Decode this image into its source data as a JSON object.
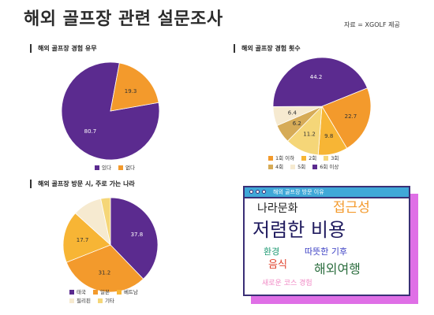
{
  "header": {
    "title": "해외 골프장 관련 설문조사",
    "source": "자료 = XGOLF 제공"
  },
  "colors": {
    "purple": "#5b2b8f",
    "orange": "#f39a2c",
    "yellow_orange": "#f7b535",
    "light_yellow": "#f5d678",
    "tan": "#d6ab57",
    "cream": "#f6ead0",
    "pink_shadow": "#df6fe6",
    "title_bar": "#3fa8d8"
  },
  "chart_data": [
    {
      "type": "pie",
      "title": "해외 골프장 경험 유무",
      "categories": [
        "있다",
        "없다"
      ],
      "values": [
        80.7,
        19.3
      ],
      "value_labels": [
        "80.7",
        "19.3"
      ],
      "colors": [
        "#5b2b8f",
        "#f39a2c"
      ],
      "legend": "bottom"
    },
    {
      "type": "pie",
      "title": "해외 골프장 경험 횟수",
      "categories": [
        "1회 이하",
        "2회",
        "3회",
        "4회",
        "5회",
        "6회 이상"
      ],
      "values": [
        22.7,
        9.8,
        11.2,
        6.2,
        6.4,
        44.2
      ],
      "value_labels": [
        "22.7",
        "9.8",
        "11.2",
        "6.2",
        "6.4",
        "44.2"
      ],
      "colors": [
        "#f39a2c",
        "#f7b535",
        "#f5d678",
        "#d6ab57",
        "#f6ead0",
        "#5b2b8f"
      ],
      "legend": "bottom"
    },
    {
      "type": "pie",
      "title": "해외 골프장 방문 시, 주로 가는 나라",
      "categories": [
        "태국",
        "일본",
        "베트남",
        "필리핀",
        "기타"
      ],
      "values": [
        37.8,
        31.2,
        17.7,
        10.0,
        3.3
      ],
      "value_labels": [
        "37.8",
        "31.2",
        "17.7",
        "",
        ""
      ],
      "colors": [
        "#5b2b8f",
        "#f39a2c",
        "#f7b535",
        "#f6ead0",
        "#f5d678"
      ],
      "legend": "bottom"
    }
  ],
  "word_cloud": {
    "title": "해외 골프장 방문 이유",
    "words": [
      {
        "text": "나라문화",
        "color": "#222222"
      },
      {
        "text": "접근성",
        "color": "#f39a2c"
      },
      {
        "text": "저렴한 비용",
        "color": "#1f1a5e"
      },
      {
        "text": "환경",
        "color": "#1e9a73"
      },
      {
        "text": "따뜻한 기후",
        "color": "#3b3fc4"
      },
      {
        "text": "음식",
        "color": "#e0442f"
      },
      {
        "text": "해외여행",
        "color": "#2c6e3f"
      },
      {
        "text": "새로운 코스 경험",
        "color": "#f08ac5"
      }
    ]
  }
}
